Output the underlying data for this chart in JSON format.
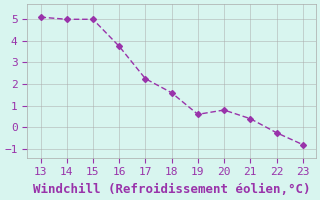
{
  "x": [
    13,
    14,
    15,
    16,
    17,
    18,
    19,
    20,
    21,
    22,
    23
  ],
  "y": [
    5.1,
    5.0,
    5.0,
    3.75,
    2.25,
    1.6,
    0.6,
    0.8,
    0.4,
    -0.25,
    -0.8
  ],
  "line_color": "#9933aa",
  "marker": "D",
  "marker_size": 3,
  "bg_color": "#d8f5ef",
  "grid_color": "#aaaaaa",
  "xlabel": "Windchill (Refroidissement éolien,°C)",
  "xlabel_color": "#9933aa",
  "xlabel_fontsize": 9,
  "tick_color": "#9933aa",
  "tick_fontsize": 8,
  "xlim": [
    12.5,
    23.5
  ],
  "ylim": [
    -1.4,
    5.7
  ],
  "xticks": [
    13,
    14,
    15,
    16,
    17,
    18,
    19,
    20,
    21,
    22,
    23
  ],
  "yticks": [
    -1,
    0,
    1,
    2,
    3,
    4,
    5
  ],
  "font_family": "monospace"
}
